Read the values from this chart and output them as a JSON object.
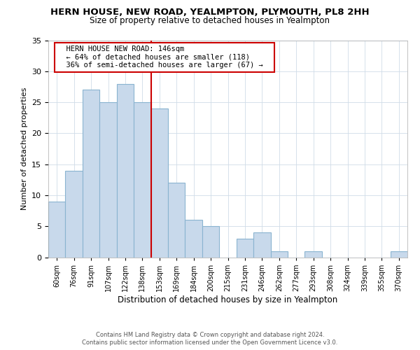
{
  "title": "HERN HOUSE, NEW ROAD, YEALMPTON, PLYMOUTH, PL8 2HH",
  "subtitle": "Size of property relative to detached houses in Yealmpton",
  "xlabel": "Distribution of detached houses by size in Yealmpton",
  "ylabel": "Number of detached properties",
  "bin_labels": [
    "60sqm",
    "76sqm",
    "91sqm",
    "107sqm",
    "122sqm",
    "138sqm",
    "153sqm",
    "169sqm",
    "184sqm",
    "200sqm",
    "215sqm",
    "231sqm",
    "246sqm",
    "262sqm",
    "277sqm",
    "293sqm",
    "308sqm",
    "324sqm",
    "339sqm",
    "355sqm",
    "370sqm"
  ],
  "bar_heights": [
    9,
    14,
    27,
    25,
    28,
    25,
    24,
    12,
    6,
    5,
    0,
    3,
    4,
    1,
    0,
    1,
    0,
    0,
    0,
    0,
    1
  ],
  "bar_color": "#c8d9eb",
  "bar_edge_color": "#8ab4d0",
  "vline_x": 5.5,
  "vline_color": "#cc0000",
  "ylim": [
    0,
    35
  ],
  "yticks": [
    0,
    5,
    10,
    15,
    20,
    25,
    30,
    35
  ],
  "annotation_title": "HERN HOUSE NEW ROAD: 146sqm",
  "annotation_line1": "← 64% of detached houses are smaller (118)",
  "annotation_line2": "36% of semi-detached houses are larger (67) →",
  "footer_line1": "Contains HM Land Registry data © Crown copyright and database right 2024.",
  "footer_line2": "Contains public sector information licensed under the Open Government Licence v3.0.",
  "background_color": "#ffffff",
  "title_fontsize": 9.5,
  "subtitle_fontsize": 8.5
}
